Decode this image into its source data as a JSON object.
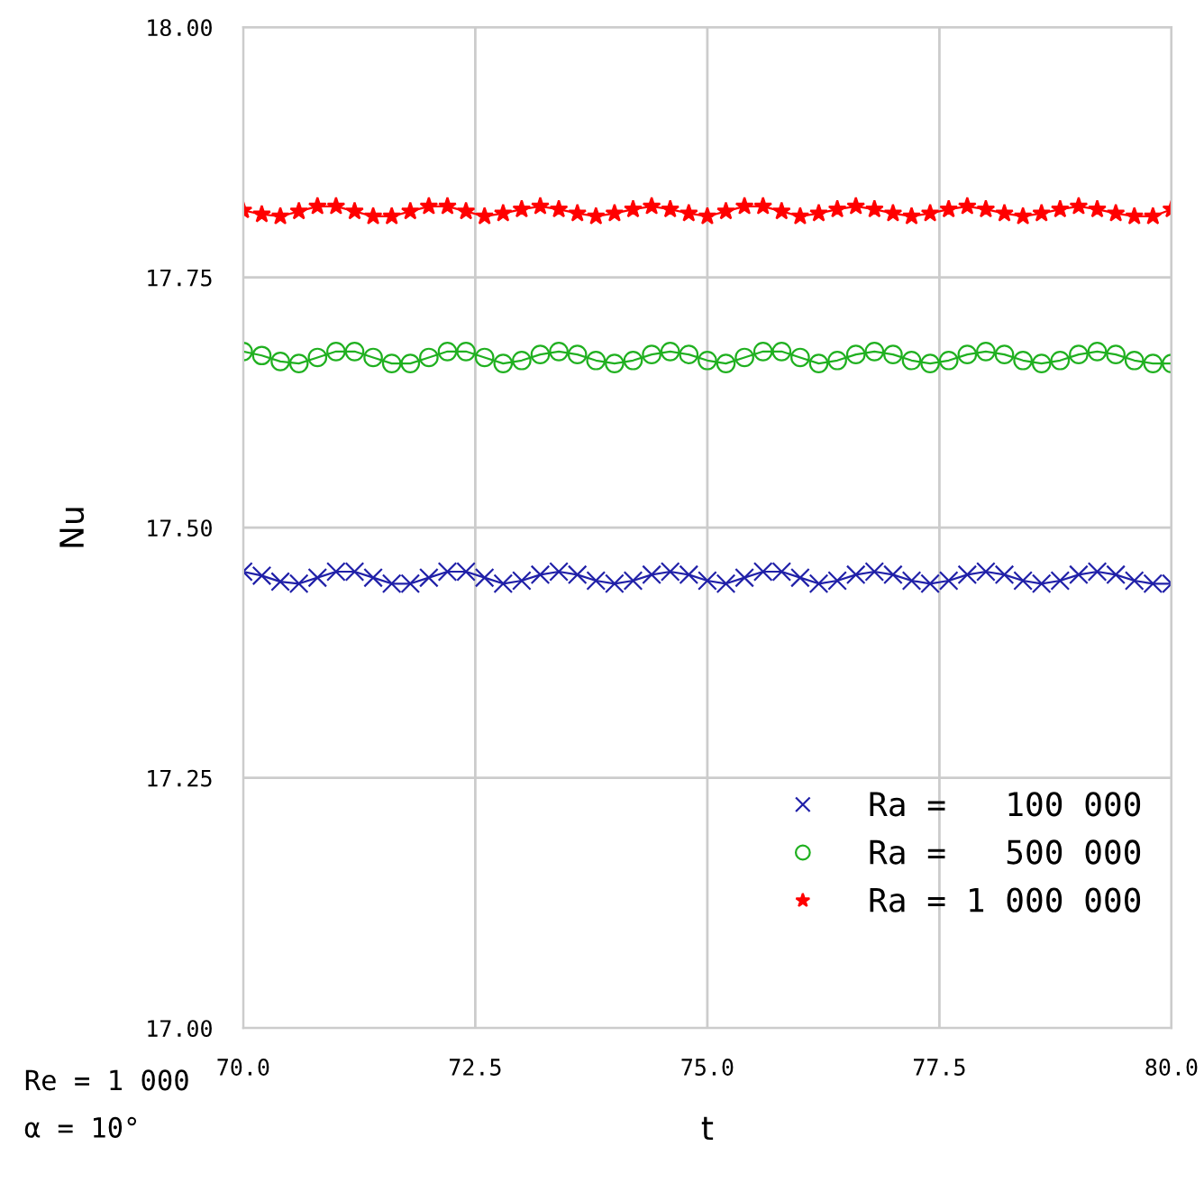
{
  "chart_data": {
    "type": "line",
    "xlabel": "t",
    "ylabel": "Nu",
    "x": [
      70.0,
      70.2,
      70.4,
      70.6,
      70.8,
      71.0,
      71.2,
      71.4,
      71.6,
      71.8,
      72.0,
      72.2,
      72.4,
      72.6,
      72.8,
      73.0,
      73.2,
      73.4,
      73.6,
      73.8,
      74.0,
      74.2,
      74.4,
      74.6,
      74.8,
      75.0,
      75.2,
      75.4,
      75.6,
      75.8,
      76.0,
      76.2,
      76.4,
      76.6,
      76.8,
      77.0,
      77.2,
      77.4,
      77.6,
      77.8,
      78.0,
      78.2,
      78.4,
      78.6,
      78.8,
      79.0,
      79.2,
      79.4,
      79.6,
      79.8,
      80.0
    ],
    "series": [
      {
        "name": "Ra =   100 000",
        "color": "#2020a8",
        "marker": "cross",
        "values": [
          17.456,
          17.452,
          17.446,
          17.444,
          17.45,
          17.456,
          17.456,
          17.45,
          17.444,
          17.444,
          17.45,
          17.456,
          17.456,
          17.45,
          17.444,
          17.447,
          17.453,
          17.456,
          17.453,
          17.447,
          17.444,
          17.447,
          17.453,
          17.456,
          17.453,
          17.447,
          17.444,
          17.45,
          17.456,
          17.456,
          17.45,
          17.444,
          17.447,
          17.453,
          17.456,
          17.453,
          17.447,
          17.444,
          17.447,
          17.453,
          17.456,
          17.453,
          17.447,
          17.444,
          17.447,
          17.453,
          17.456,
          17.453,
          17.447,
          17.444,
          17.444
        ]
      },
      {
        "name": "Ra =   500 000",
        "color": "#20b020",
        "marker": "circle",
        "values": [
          17.676,
          17.672,
          17.666,
          17.664,
          17.67,
          17.676,
          17.676,
          17.67,
          17.664,
          17.664,
          17.67,
          17.676,
          17.676,
          17.67,
          17.664,
          17.667,
          17.673,
          17.676,
          17.673,
          17.667,
          17.664,
          17.667,
          17.673,
          17.676,
          17.673,
          17.667,
          17.664,
          17.67,
          17.676,
          17.676,
          17.67,
          17.664,
          17.667,
          17.673,
          17.676,
          17.673,
          17.667,
          17.664,
          17.667,
          17.673,
          17.676,
          17.673,
          17.667,
          17.664,
          17.667,
          17.673,
          17.676,
          17.673,
          17.667,
          17.664,
          17.664
        ]
      },
      {
        "name": "Ra = 1 000 000",
        "color": "#ff0000",
        "marker": "star",
        "values": [
          17.817,
          17.813,
          17.811,
          17.816,
          17.821,
          17.821,
          17.816,
          17.811,
          17.811,
          17.816,
          17.821,
          17.821,
          17.816,
          17.811,
          17.814,
          17.818,
          17.821,
          17.818,
          17.814,
          17.811,
          17.814,
          17.818,
          17.821,
          17.818,
          17.814,
          17.811,
          17.816,
          17.821,
          17.821,
          17.816,
          17.811,
          17.814,
          17.818,
          17.821,
          17.818,
          17.814,
          17.811,
          17.814,
          17.818,
          17.821,
          17.818,
          17.814,
          17.811,
          17.814,
          17.818,
          17.821,
          17.818,
          17.814,
          17.811,
          17.811,
          17.818
        ]
      }
    ],
    "xlim": [
      70,
      80
    ],
    "ylim": [
      17,
      18
    ],
    "xticks": [
      {
        "value": 70,
        "label": "70.0"
      },
      72.5,
      {
        "value": 75,
        "label": "75.0"
      },
      77.5,
      {
        "value": 80,
        "label": "80.0"
      }
    ],
    "yticks": [
      {
        "value": 17,
        "label": "17.00"
      },
      17.25,
      {
        "value": 17.5,
        "label": "17.50"
      },
      17.75,
      {
        "value": 18,
        "label": "18.00"
      }
    ],
    "grid": true,
    "legend": "bottom right",
    "line_style": "solid",
    "annotations": [
      "Re = 1 000",
      "α = 10°"
    ]
  }
}
